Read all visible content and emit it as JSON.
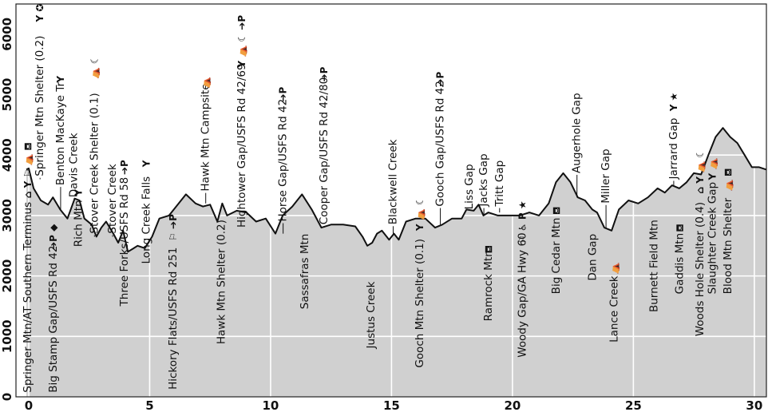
{
  "chart_data": {
    "type": "area",
    "title": "",
    "xlabel": "",
    "ylabel": "",
    "xlim": [
      0,
      30.5
    ],
    "ylim": [
      0,
      6500
    ],
    "xticks": [
      0,
      5,
      10,
      15,
      20,
      25,
      30
    ],
    "yticks": [
      0,
      1000,
      2000,
      3000,
      4000,
      5000,
      6000
    ],
    "grid": true,
    "colors": {
      "fill": "#d0d0d0",
      "line": "#111111",
      "grid": "#ffffff"
    },
    "profile": {
      "x": [
        -0.1,
        0,
        0.2,
        0.5,
        0.8,
        1.0,
        1.3,
        1.6,
        1.9,
        2.1,
        2.3,
        2.6,
        2.8,
        3.0,
        3.2,
        3.5,
        3.7,
        3.9,
        4.1,
        4.3,
        4.5,
        4.8,
        5.1,
        5.4,
        5.8,
        6.2,
        6.5,
        6.9,
        7.2,
        7.5,
        7.8,
        8.0,
        8.2,
        8.6,
        9.0,
        9.4,
        9.8,
        10.2,
        10.5,
        10.9,
        11.3,
        11.7,
        12.1,
        12.5,
        13.0,
        13.5,
        13.8,
        14.0,
        14.2,
        14.4,
        14.6,
        14.9,
        15.1,
        15.3,
        15.6,
        16.0,
        16.4,
        16.8,
        17.1,
        17.5,
        17.9,
        18.1,
        18.4,
        18.6,
        18.8,
        19.0,
        19.4,
        19.8,
        20.3,
        20.7,
        21.1,
        21.5,
        21.8,
        22.1,
        22.4,
        22.7,
        23.0,
        23.3,
        23.5,
        23.8,
        24.1,
        24.4,
        24.8,
        25.2,
        25.6,
        26.0,
        26.3,
        26.6,
        26.9,
        27.2,
        27.5,
        27.8,
        28.1,
        28.4,
        28.7,
        29.0,
        29.3,
        29.6,
        29.9,
        30.2,
        30.5
      ],
      "y": [
        3760,
        3780,
        3450,
        3250,
        3180,
        3300,
        3100,
        2950,
        3280,
        3250,
        2950,
        2850,
        2650,
        2800,
        2900,
        2700,
        2550,
        2750,
        2400,
        2450,
        2500,
        2460,
        2650,
        2950,
        3000,
        3200,
        3350,
        3200,
        3150,
        3180,
        2900,
        3200,
        3000,
        3080,
        3050,
        2900,
        2950,
        2700,
        3000,
        3150,
        3350,
        3100,
        2800,
        2850,
        2850,
        2820,
        2650,
        2500,
        2550,
        2700,
        2750,
        2600,
        2700,
        2600,
        2900,
        2950,
        2950,
        2800,
        2850,
        2950,
        2950,
        3100,
        3080,
        3180,
        3000,
        3050,
        3000,
        3000,
        3000,
        3050,
        3000,
        3200,
        3550,
        3700,
        3550,
        3300,
        3250,
        3100,
        3050,
        2800,
        2750,
        3100,
        3250,
        3200,
        3300,
        3450,
        3380,
        3500,
        3450,
        3550,
        3700,
        3680,
        4000,
        4300,
        4450,
        4300,
        4200,
        4000,
        3800,
        3800,
        3760
      ]
    },
    "landmarks": [
      {
        "name": "Springer Mtn/AT Southern Terminus",
        "x": 0.1,
        "label_y": 70,
        "anchor_y": 3780,
        "icons": "⌂ Y ⚐ ⛺ ⛾"
      },
      {
        "name": "Springer Mtn Shelter (0.2)",
        "x": 0.6,
        "label_y": 3650,
        "anchor_y": 3600,
        "icons": "Y ✪"
      },
      {
        "name": "Big Stamp Gap/USFS Rd 42",
        "x": 1.15,
        "label_y": 70,
        "anchor_y": 3200,
        "icons": "➔P ◆"
      },
      {
        "name": "Benton MacKaye Tr",
        "x": 1.45,
        "label_y": 3500,
        "anchor_y": 3100,
        "icons": "Y"
      },
      {
        "name": "Davis Creek",
        "x": 2.0,
        "label_y": 3300,
        "anchor_y": 3280,
        "icons": ""
      },
      {
        "name": "Rich Mtn",
        "x": 2.2,
        "label_y": 2480,
        "anchor_y": 3250,
        "icons": "Y"
      },
      {
        "name": "Stover Creek Shelter (0.1)",
        "x": 2.85,
        "label_y": 2700,
        "anchor_y": 2650,
        "icons": "⛺ ☾"
      },
      {
        "name": "Stover Creek",
        "x": 3.6,
        "label_y": 2700,
        "anchor_y": 2650,
        "icons": ""
      },
      {
        "name": "Three Forks/USFS Rd 58",
        "x": 4.1,
        "label_y": 1500,
        "anchor_y": 2400,
        "icons": "➔P"
      },
      {
        "name": "Long Creek Falls",
        "x": 5.0,
        "label_y": 2200,
        "anchor_y": 2650,
        "icons": "Y"
      },
      {
        "name": "Hickory Flats/USFS Rd 251",
        "x": 6.1,
        "label_y": 120,
        "anchor_y": 3100,
        "icons": "⚐ ➔P"
      },
      {
        "name": "Hawk Mtn Campsite",
        "x": 7.45,
        "label_y": 3400,
        "anchor_y": 3200,
        "icons": "⛺"
      },
      {
        "name": "Hawk Mtn Shelter (0.2)",
        "x": 8.1,
        "label_y": 870,
        "anchor_y": 3200,
        "icons": ""
      },
      {
        "name": "Hightower Gap/USFS Rd 42/69",
        "x": 8.95,
        "label_y": 2800,
        "anchor_y": 3000,
        "icons": "Y ⛺ ☾ ➔P"
      },
      {
        "name": "Horse Gap/USFS Rd 42",
        "x": 10.65,
        "label_y": 2900,
        "anchor_y": 2700,
        "icons": "➔P"
      },
      {
        "name": "Sassafras Mtn",
        "x": 11.55,
        "label_y": 1450,
        "anchor_y": 3350,
        "icons": ""
      },
      {
        "name": "Cooper Gap/USFS Rd 42/80",
        "x": 12.35,
        "label_y": 2850,
        "anchor_y": 2800,
        "icons": "➔P"
      },
      {
        "name": "Justus Creek",
        "x": 14.3,
        "label_y": 800,
        "anchor_y": 2500,
        "icons": ""
      },
      {
        "name": "Blackwell Creek",
        "x": 15.2,
        "label_y": 2850,
        "anchor_y": 2700,
        "icons": ""
      },
      {
        "name": "Gooch Mtn Shelter (0.1)",
        "x": 16.3,
        "label_y": 480,
        "anchor_y": 2950,
        "icons": "Y ⛺ ☾"
      },
      {
        "name": "Gooch Gap/USFS Rd 42",
        "x": 17.15,
        "label_y": 3150,
        "anchor_y": 2850,
        "icons": "➔P"
      },
      {
        "name": "Liss Gap",
        "x": 18.35,
        "label_y": 3100,
        "anchor_y": 3100,
        "icons": ""
      },
      {
        "name": "Jacks Gap",
        "x": 18.95,
        "label_y": 3150,
        "anchor_y": 3000,
        "icons": ""
      },
      {
        "name": "Ramrock Mtn",
        "x": 19.15,
        "label_y": 1250,
        "anchor_y": 3180,
        "icons": "⛾"
      },
      {
        "name": "Tritt Gap",
        "x": 19.6,
        "label_y": 3150,
        "anchor_y": 3050,
        "icons": ""
      },
      {
        "name": "Woody Gap/GA Hwy 60",
        "x": 20.55,
        "label_y": 650,
        "anchor_y": 3000,
        "icons": "⚐ ♿ P ★"
      },
      {
        "name": "Big Cedar Mtn",
        "x": 21.95,
        "label_y": 1700,
        "anchor_y": 3600,
        "icons": "⛾"
      },
      {
        "name": "Augerhole Gap",
        "x": 22.8,
        "label_y": 3700,
        "anchor_y": 3300,
        "icons": ""
      },
      {
        "name": "Dan Gap",
        "x": 23.45,
        "label_y": 1920,
        "anchor_y": 3050,
        "icons": ""
      },
      {
        "name": "Miller Gap",
        "x": 24.0,
        "label_y": 3200,
        "anchor_y": 2800,
        "icons": ""
      },
      {
        "name": "Lance Creek",
        "x": 24.35,
        "label_y": 900,
        "anchor_y": 2750,
        "icons": "⛺"
      },
      {
        "name": "Burnett Field Mtn",
        "x": 26.0,
        "label_y": 1400,
        "anchor_y": 3450,
        "icons": ""
      },
      {
        "name": "Jarrard Gap",
        "x": 26.8,
        "label_y": 3600,
        "anchor_y": 3500,
        "icons": "Y ★"
      },
      {
        "name": "Gaddis Mtn",
        "x": 27.05,
        "label_y": 1700,
        "anchor_y": 3450,
        "icons": "⛾"
      },
      {
        "name": "Woods Hole Shelter (0.4)",
        "x": 27.9,
        "label_y": 1000,
        "anchor_y": 3700,
        "icons": "⌂ Y ⛺ ☾"
      },
      {
        "name": "Slaughter Creek Gap",
        "x": 28.4,
        "label_y": 1700,
        "anchor_y": 4000,
        "icons": "Y ⛺"
      },
      {
        "name": "Blood Mtn Shelter",
        "x": 29.05,
        "label_y": 1700,
        "anchor_y": 4450,
        "icons": "⛺ ⛾"
      }
    ]
  }
}
